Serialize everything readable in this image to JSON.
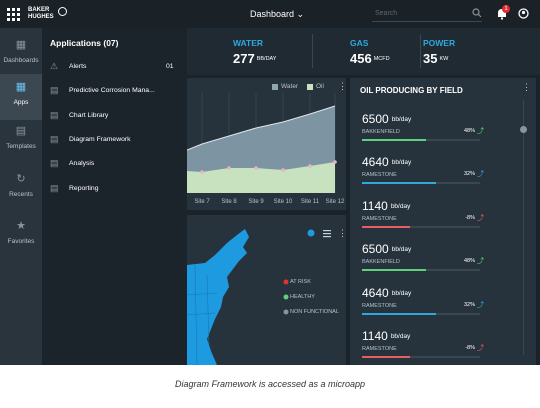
{
  "top_bar": {
    "logo_line1": "BAKER",
    "logo_line2": "HUGHES",
    "title": "Dashboard",
    "search_placeholder": "Search",
    "notification_count": "1"
  },
  "nav": [
    "Dashboards",
    "Apps",
    "Templates",
    "Recents",
    "Favorites"
  ],
  "apps_panel": {
    "title": "Applications (07)",
    "items": [
      {
        "label": "Alerts",
        "count": "01"
      },
      {
        "label": "Predictive Corrosion Mana..."
      },
      {
        "label": "Chart Library"
      },
      {
        "label": "Diagram Framework"
      },
      {
        "label": "Analysis"
      },
      {
        "label": "Reporting"
      }
    ]
  },
  "metrics": [
    {
      "name": "WATER",
      "value": "277",
      "unit": "BB/DAY"
    },
    {
      "name": "GAS",
      "value": "456",
      "unit": "MCFD"
    },
    {
      "name": "POWER",
      "value": "35",
      "unit": "KW"
    }
  ],
  "area_chart": {
    "legend": [
      "Water",
      "Oil"
    ],
    "x_labels": [
      "Site 7",
      "Site 8",
      "Site 9",
      "Site 10",
      "Site 11",
      "Site 12"
    ]
  },
  "map": {
    "legend": [
      "AT RISK",
      "HEALTHY",
      "NON FUNCTIONAL"
    ]
  },
  "field_panel": {
    "title": "OIL PRODUCING BY FIELD",
    "rows": [
      {
        "value": "6500",
        "unit": "bb/day",
        "field": "BAKKENFIELD",
        "change": "48%"
      },
      {
        "value": "4640",
        "unit": "bb/day",
        "field": "RAMESTONE",
        "change": "32%"
      },
      {
        "value": "1140",
        "unit": "bb/day",
        "field": "RAMESTONE",
        "change": "-8%"
      },
      {
        "value": "6500",
        "unit": "bb/day",
        "field": "BAKKENFIELD",
        "change": "48%"
      },
      {
        "value": "4640",
        "unit": "bb/day",
        "field": "RAMESTONE",
        "change": "32%"
      },
      {
        "value": "1140",
        "unit": "bb/day",
        "field": "RAMESTONE",
        "change": "-8%"
      }
    ]
  },
  "caption": "Diagram Framework is accessed as a microapp"
}
